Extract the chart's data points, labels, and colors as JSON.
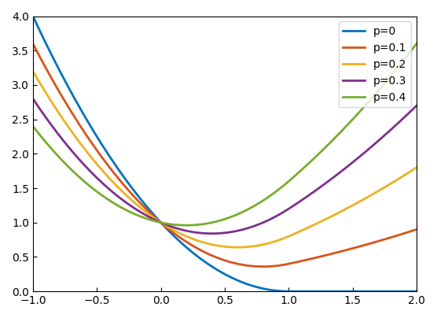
{
  "p_values": [
    0,
    0.1,
    0.2,
    0.3,
    0.4
  ],
  "colors": [
    "#0072BD",
    "#D95319",
    "#EDB120",
    "#7E2F8E",
    "#77AC30"
  ],
  "labels": [
    "p=0",
    "p=0.1",
    "p=0.2",
    "p=0.3",
    "p=0.4"
  ],
  "x_min": -1,
  "x_max": 2,
  "y_min": 0,
  "y_max": 4,
  "linewidth": 2.0
}
